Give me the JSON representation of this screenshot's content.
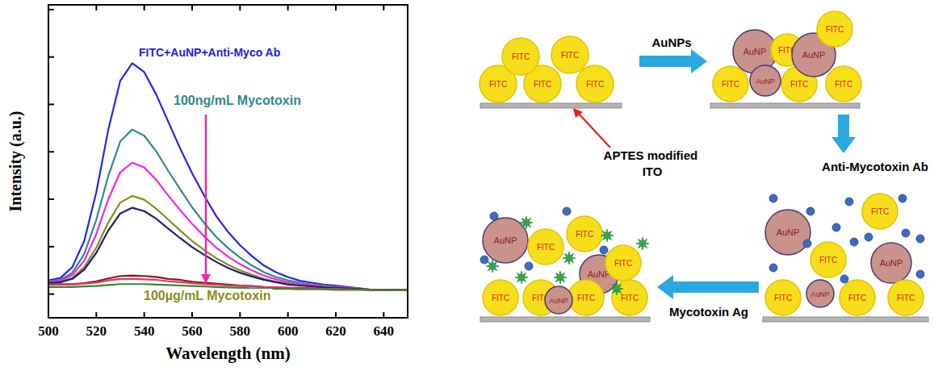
{
  "chart_data": {
    "type": "line",
    "x_label": "Wavelength (nm)",
    "y_label": "Intensity (a.u.)",
    "x": [
      500,
      505,
      510,
      515,
      520,
      525,
      530,
      535,
      540,
      545,
      550,
      555,
      560,
      565,
      570,
      575,
      580,
      585,
      590,
      595,
      600,
      605,
      610,
      615,
      620,
      625,
      630,
      635,
      640,
      645,
      650
    ],
    "xlim": [
      500,
      650
    ],
    "xticks": [
      500,
      520,
      540,
      560,
      580,
      600,
      620,
      640
    ],
    "ylim": [
      -0.5,
      6.1
    ],
    "yticks": [
      0,
      1,
      2,
      3,
      4,
      5,
      6
    ],
    "tick_labels": "x",
    "annotations": [
      {
        "text": "FITC+AuNP+Anti-Myco Ab",
        "color": "#2020e8"
      },
      {
        "text": "100ng/mL Mycotoxin",
        "color": "#2e8b8b"
      },
      {
        "text": "100µg/mL Mycotoxin",
        "color": "#8b8b1e"
      }
    ],
    "series": [
      {
        "color": "#2424f0",
        "values": [
          0.29,
          0.34,
          0.57,
          1.13,
          2.15,
          3.47,
          4.5,
          4.87,
          4.68,
          4.21,
          3.64,
          3.07,
          2.55,
          2.08,
          1.65,
          1.31,
          1.03,
          0.8,
          0.6,
          0.46,
          0.36,
          0.28,
          0.24,
          0.2,
          0.18,
          0.15,
          0.12,
          0.09,
          0.09,
          0.09,
          0.08
        ]
      },
      {
        "color": "#2e8b8b",
        "values": [
          0.27,
          0.3,
          0.45,
          0.85,
          1.57,
          2.49,
          3.22,
          3.47,
          3.34,
          3.01,
          2.6,
          2.21,
          1.83,
          1.5,
          1.21,
          0.97,
          0.77,
          0.6,
          0.46,
          0.36,
          0.29,
          0.24,
          0.2,
          0.18,
          0.16,
          0.13,
          0.12,
          0.09,
          0.09,
          0.09,
          0.08
        ]
      },
      {
        "color": "#ff22dd",
        "values": [
          0.25,
          0.28,
          0.4,
          0.71,
          1.27,
          2.0,
          2.57,
          2.77,
          2.67,
          2.41,
          2.08,
          1.77,
          1.48,
          1.22,
          0.98,
          0.79,
          0.63,
          0.5,
          0.39,
          0.31,
          0.25,
          0.21,
          0.19,
          0.16,
          0.15,
          0.13,
          0.11,
          0.09,
          0.09,
          0.09,
          0.08
        ]
      },
      {
        "color": "#8b8b1e",
        "values": [
          0.24,
          0.26,
          0.34,
          0.57,
          0.98,
          1.51,
          1.93,
          2.07,
          1.99,
          1.8,
          1.57,
          1.34,
          1.12,
          0.93,
          0.76,
          0.62,
          0.5,
          0.41,
          0.32,
          0.26,
          0.22,
          0.19,
          0.17,
          0.15,
          0.14,
          0.12,
          0.11,
          0.09,
          0.09,
          0.09,
          0.08
        ]
      },
      {
        "color": "#1c1c80",
        "values": [
          0.23,
          0.25,
          0.32,
          0.52,
          0.87,
          1.34,
          1.7,
          1.82,
          1.75,
          1.59,
          1.38,
          1.18,
          0.99,
          0.83,
          0.68,
          0.55,
          0.45,
          0.37,
          0.3,
          0.25,
          0.2,
          0.18,
          0.16,
          0.14,
          0.13,
          0.12,
          0.11,
          0.09,
          0.09,
          0.09,
          0.08
        ]
      },
      {
        "color": "#8b1a1a",
        "values": [
          0.2,
          0.21,
          0.21,
          0.23,
          0.27,
          0.33,
          0.38,
          0.39,
          0.38,
          0.36,
          0.32,
          0.3,
          0.26,
          0.24,
          0.22,
          0.2,
          0.18,
          0.17,
          0.15,
          0.14,
          0.13,
          0.13,
          0.12,
          0.11,
          0.11,
          0.1,
          0.1,
          0.09,
          0.09,
          0.09,
          0.08
        ]
      },
      {
        "color": "#e8336b",
        "values": [
          0.2,
          0.2,
          0.2,
          0.22,
          0.24,
          0.29,
          0.32,
          0.32,
          0.31,
          0.3,
          0.27,
          0.25,
          0.23,
          0.21,
          0.2,
          0.18,
          0.17,
          0.16,
          0.15,
          0.14,
          0.13,
          0.12,
          0.12,
          0.11,
          0.11,
          0.1,
          0.1,
          0.09,
          0.09,
          0.09,
          0.08
        ]
      },
      {
        "color": "#2e8b2e",
        "values": [
          0.15,
          0.15,
          0.15,
          0.16,
          0.17,
          0.19,
          0.21,
          0.21,
          0.21,
          0.2,
          0.19,
          0.18,
          0.17,
          0.16,
          0.15,
          0.14,
          0.13,
          0.12,
          0.12,
          0.11,
          0.11,
          0.1,
          0.1,
          0.1,
          0.09,
          0.09,
          0.09,
          0.08,
          0.08,
          0.08,
          0.08
        ]
      }
    ]
  },
  "diagram": {
    "particle_labels": {
      "fitc": "FITC",
      "aunp": "AuNP"
    },
    "substrate_label": "APTES modified ITO",
    "steps": [
      {
        "label": "AuNPs"
      },
      {
        "label": "Anti-Mycotoxin Ab"
      },
      {
        "label": "Mycotoxin Ag"
      }
    ]
  }
}
